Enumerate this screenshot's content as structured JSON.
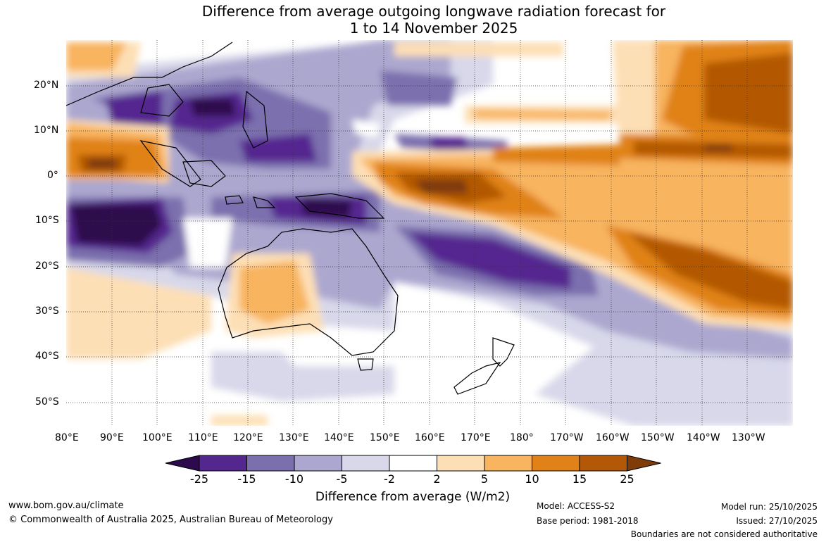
{
  "title": {
    "line1": "Difference from average outgoing longwave radiation forecast for",
    "line2": "1 to 14 November 2025"
  },
  "axes": {
    "lat_labels": [
      "20°N",
      "10°N",
      "0°",
      "10°S",
      "20°S",
      "30°S",
      "40°S",
      "50°S"
    ],
    "lon_labels": [
      "80°E",
      "90°E",
      "100°E",
      "110°E",
      "120°E",
      "130°E",
      "140°E",
      "150°E",
      "160°E",
      "170°E",
      "180°",
      "170°W",
      "160°W",
      "150°W",
      "140°W",
      "130°W"
    ]
  },
  "colorbar": {
    "levels": [
      "-25",
      "-15",
      "-10",
      "-5",
      "-2",
      "2",
      "5",
      "10",
      "15",
      "25"
    ],
    "colors": [
      "#2d0a4e",
      "#54278f",
      "#7b6fae",
      "#aca7cf",
      "#d8d8ea",
      "#ffffff",
      "#fddfb5",
      "#f8b45e",
      "#e08217",
      "#b35806",
      "#7f3b08"
    ],
    "title": "Difference from average (W/m2)"
  },
  "footer": {
    "url": "www.bom.gov.au/climate",
    "copyright": "© Commonwealth of Australia 2025, Australian Bureau of Meteorology",
    "model": "Model: ACCESS-S2",
    "base_period": "Base period: 1981-2018",
    "model_run": "Model run: 25/10/2025",
    "issued": "Issued: 27/10/2025",
    "disclaimer": "Boundaries are not considered authoritative"
  }
}
